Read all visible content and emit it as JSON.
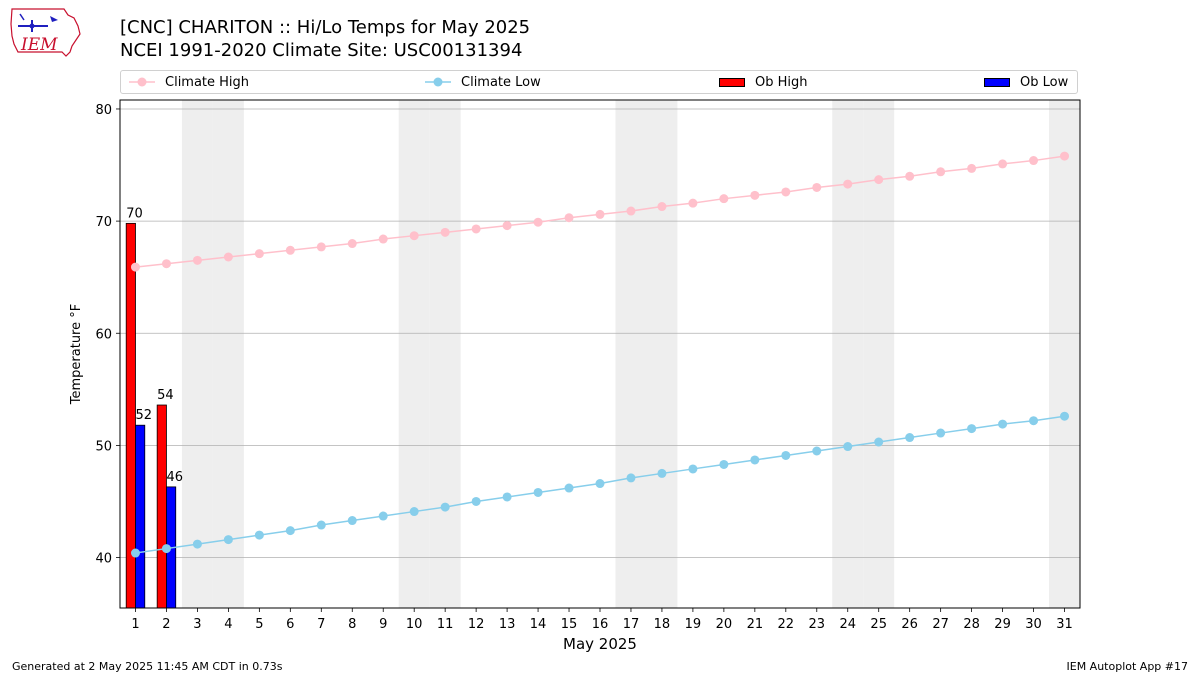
{
  "header": {
    "title_line1": "[CNC] CHARITON :: Hi/Lo Temps for May 2025",
    "title_line2": "NCEI 1991-2020 Climate Site: USC00131394",
    "logo_text": "IEM"
  },
  "footer": {
    "left": "Generated at 2 May 2025 11:45 AM CDT in 0.73s",
    "right": "IEM Autoplot App #17"
  },
  "colors": {
    "climate_high": "#ffc0cb",
    "climate_low": "#87ceeb",
    "ob_high": "#ff0000",
    "ob_low": "#0000ff",
    "weekend_shade": "#eeeeee",
    "grid": "#b0b0b0"
  },
  "chart_data": {
    "type": "bar",
    "xlabel": "May 2025",
    "ylabel": "Temperature °F",
    "xlim": [
      0.5,
      31.5
    ],
    "ylim": [
      35.5,
      80.8
    ],
    "yticks": [
      40,
      50,
      60,
      70,
      80
    ],
    "x": [
      1,
      2,
      3,
      4,
      5,
      6,
      7,
      8,
      9,
      10,
      11,
      12,
      13,
      14,
      15,
      16,
      17,
      18,
      19,
      20,
      21,
      22,
      23,
      24,
      25,
      26,
      27,
      28,
      29,
      30,
      31
    ],
    "grid": "horizontal",
    "legend_placement": "top",
    "legend": [
      "Climate High",
      "Climate Low",
      "Ob High",
      "Ob Low"
    ],
    "weekend_days": [
      3,
      4,
      10,
      11,
      17,
      18,
      24,
      25,
      31
    ],
    "series": [
      {
        "name": "Climate High",
        "kind": "line",
        "values": [
          65.9,
          66.2,
          66.5,
          66.8,
          67.1,
          67.4,
          67.7,
          68.0,
          68.4,
          68.7,
          69.0,
          69.3,
          69.6,
          69.9,
          70.3,
          70.6,
          70.9,
          71.3,
          71.6,
          72.0,
          72.3,
          72.6,
          73.0,
          73.3,
          73.7,
          74.0,
          74.4,
          74.7,
          75.1,
          75.4,
          75.8
        ]
      },
      {
        "name": "Climate Low",
        "kind": "line",
        "values": [
          40.4,
          40.8,
          41.2,
          41.6,
          42.0,
          42.4,
          42.9,
          43.3,
          43.7,
          44.1,
          44.5,
          45.0,
          45.4,
          45.8,
          46.2,
          46.6,
          47.1,
          47.5,
          47.9,
          48.3,
          48.7,
          49.1,
          49.5,
          49.9,
          50.3,
          50.7,
          51.1,
          51.5,
          51.9,
          52.2,
          52.6
        ]
      },
      {
        "name": "Ob High",
        "kind": "bar",
        "x": [
          1,
          2
        ],
        "values": [
          69.8,
          53.6
        ],
        "labels": [
          "70",
          "54"
        ]
      },
      {
        "name": "Ob Low",
        "kind": "bar",
        "x": [
          1,
          2
        ],
        "values": [
          51.8,
          46.3
        ],
        "labels": [
          "52",
          "46"
        ]
      }
    ]
  }
}
